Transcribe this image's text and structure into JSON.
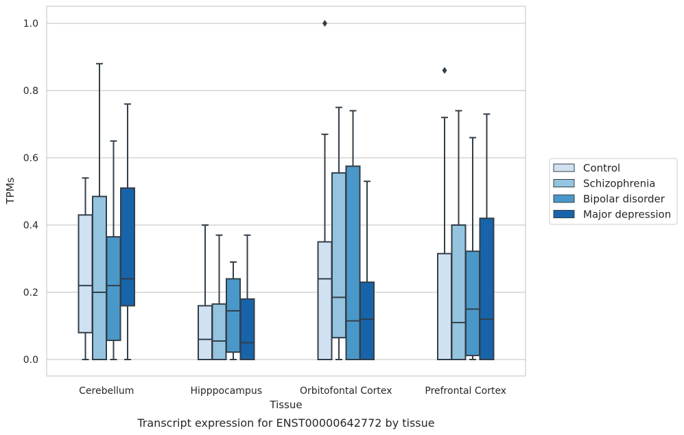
{
  "caption": "Transcript expression for ENST00000642772 by tissue",
  "chart_data": {
    "type": "box",
    "xlabel": "Tissue",
    "ylabel": "TPMs",
    "ylim": [
      -0.05,
      1.05
    ],
    "yticks": [
      0.0,
      0.2,
      0.4,
      0.6,
      0.8,
      1.0
    ],
    "ytick_labels": [
      "0.0",
      "0.2",
      "0.4",
      "0.6",
      "0.8",
      "1.0"
    ],
    "grid": "horizontal",
    "legend_position": "right",
    "categories": [
      "Cerebellum",
      "Hipppocampus",
      "Orbitofontal Cortex",
      "Prefrontal Cortex"
    ],
    "series": [
      {
        "name": "Control",
        "color": "#d0e1f2",
        "boxes": [
          {
            "min": 0.0,
            "q1": 0.08,
            "median": 0.22,
            "q3": 0.43,
            "max": 0.54,
            "outliers": []
          },
          {
            "min": 0.0,
            "q1": 0.0,
            "median": 0.06,
            "q3": 0.16,
            "max": 0.4,
            "outliers": []
          },
          {
            "min": 0.0,
            "q1": 0.0,
            "median": 0.24,
            "q3": 0.35,
            "max": 0.67,
            "outliers": [
              1.0
            ]
          },
          {
            "min": 0.0,
            "q1": 0.0,
            "median": 0.0,
            "q3": 0.315,
            "max": 0.72,
            "outliers": [
              0.86
            ]
          }
        ]
      },
      {
        "name": "Schizophrenia",
        "color": "#94c4df",
        "boxes": [
          {
            "min": 0.0,
            "q1": 0.0,
            "median": 0.2,
            "q3": 0.485,
            "max": 0.88,
            "outliers": []
          },
          {
            "min": 0.0,
            "q1": 0.0,
            "median": 0.055,
            "q3": 0.165,
            "max": 0.37,
            "outliers": []
          },
          {
            "min": 0.0,
            "q1": 0.065,
            "median": 0.185,
            "q3": 0.555,
            "max": 0.75,
            "outliers": []
          },
          {
            "min": 0.0,
            "q1": 0.0,
            "median": 0.11,
            "q3": 0.4,
            "max": 0.74,
            "outliers": []
          }
        ]
      },
      {
        "name": "Bipolar disorder",
        "color": "#4a98c9",
        "boxes": [
          {
            "min": 0.0,
            "q1": 0.057,
            "median": 0.22,
            "q3": 0.365,
            "max": 0.65,
            "outliers": []
          },
          {
            "min": 0.0,
            "q1": 0.022,
            "median": 0.145,
            "q3": 0.24,
            "max": 0.29,
            "outliers": []
          },
          {
            "min": 0.0,
            "q1": 0.0,
            "median": 0.115,
            "q3": 0.575,
            "max": 0.74,
            "outliers": []
          },
          {
            "min": 0.0,
            "q1": 0.012,
            "median": 0.15,
            "q3": 0.322,
            "max": 0.66,
            "outliers": []
          }
        ]
      },
      {
        "name": "Major depression",
        "color": "#1764ab",
        "boxes": [
          {
            "min": 0.0,
            "q1": 0.16,
            "median": 0.24,
            "q3": 0.51,
            "max": 0.76,
            "outliers": []
          },
          {
            "min": 0.0,
            "q1": 0.0,
            "median": 0.05,
            "q3": 0.18,
            "max": 0.37,
            "outliers": []
          },
          {
            "min": 0.0,
            "q1": 0.0,
            "median": 0.12,
            "q3": 0.23,
            "max": 0.53,
            "outliers": []
          },
          {
            "min": 0.0,
            "q1": 0.0,
            "median": 0.12,
            "q3": 0.42,
            "max": 0.73,
            "outliers": []
          }
        ]
      }
    ]
  }
}
